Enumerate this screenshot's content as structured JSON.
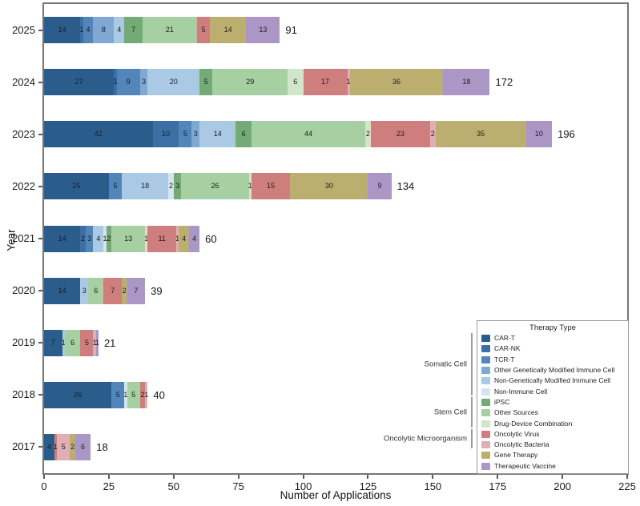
{
  "chart_data": {
    "type": "bar",
    "orientation": "horizontal",
    "stacked": true,
    "xlabel": "Number of Applications",
    "ylabel": "Year",
    "xlim": [
      0,
      225
    ],
    "x_ticks": [
      0,
      25,
      50,
      75,
      100,
      125,
      150,
      175,
      200,
      225
    ],
    "categories": [
      "2025",
      "2024",
      "2023",
      "2022",
      "2021",
      "2020",
      "2019",
      "2018",
      "2017"
    ],
    "series_order": [
      "CAR-T",
      "CAR-NK",
      "TCR-T",
      "Other Genetically Modified Immune Cell",
      "Non-Genetically Modified Immune Cell",
      "Non-Immune Cell",
      "iPSC",
      "Other Sources",
      "Drug-Device Combination",
      "Oncolytic Virus",
      "Oncolytic Bacteria",
      "Gene Therapy",
      "Therapeutic Vaccine"
    ],
    "colors": {
      "CAR-T": "#2a5d8c",
      "CAR-NK": "#3c6fa3",
      "TCR-T": "#5285ba",
      "Other Genetically Modified Immune Cell": "#7fa8d2",
      "Non-Genetically Modified Immune Cell": "#aac9e5",
      "Non-Immune Cell": "#d6e4f1",
      "iPSC": "#74aa76",
      "Other Sources": "#a6cfa2",
      "Drug-Device Combination": "#cfe6ca",
      "Oncolytic Virus": "#ce7e7c",
      "Oncolytic Bacteria": "#e2aeb6",
      "Gene Therapy": "#bcae6e",
      "Therapeutic Vaccine": "#ab97c6"
    },
    "bars": [
      {
        "year": "2025",
        "total": 91,
        "segments": [
          [
            "CAR-T",
            14
          ],
          [
            "CAR-NK",
            1
          ],
          [
            "TCR-T",
            4
          ],
          [
            "Other Genetically Modified Immune Cell",
            8
          ],
          [
            "Non-Genetically Modified Immune Cell",
            4
          ],
          [
            "iPSC",
            7
          ],
          [
            "Other Sources",
            21
          ],
          [
            "Oncolytic Virus",
            5
          ],
          [
            "Gene Therapy",
            14
          ],
          [
            "Therapeutic Vaccine",
            13
          ]
        ]
      },
      {
        "year": "2024",
        "total": 172,
        "segments": [
          [
            "CAR-T",
            27
          ],
          [
            "CAR-NK",
            1
          ],
          [
            "TCR-T",
            9
          ],
          [
            "Other Genetically Modified Immune Cell",
            3
          ],
          [
            "Non-Genetically Modified Immune Cell",
            20
          ],
          [
            "iPSC",
            5
          ],
          [
            "Other Sources",
            29
          ],
          [
            "Drug-Device Combination",
            6
          ],
          [
            "Oncolytic Virus",
            17
          ],
          [
            "Oncolytic Bacteria",
            1
          ],
          [
            "Gene Therapy",
            36
          ],
          [
            "Therapeutic Vaccine",
            18
          ]
        ]
      },
      {
        "year": "2023",
        "total": 196,
        "segments": [
          [
            "CAR-T",
            42
          ],
          [
            "CAR-NK",
            10
          ],
          [
            "TCR-T",
            5
          ],
          [
            "Other Genetically Modified Immune Cell",
            3
          ],
          [
            "Non-Genetically Modified Immune Cell",
            14
          ],
          [
            "iPSC",
            6
          ],
          [
            "Other Sources",
            44
          ],
          [
            "Drug-Device Combination",
            2
          ],
          [
            "Oncolytic Virus",
            23
          ],
          [
            "Oncolytic Bacteria",
            2
          ],
          [
            "Gene Therapy",
            35
          ],
          [
            "Therapeutic Vaccine",
            10
          ]
        ]
      },
      {
        "year": "2022",
        "total": 134,
        "segments": [
          [
            "CAR-T",
            25
          ],
          [
            "TCR-T",
            5
          ],
          [
            "Non-Genetically Modified Immune Cell",
            18
          ],
          [
            "Non-Immune Cell",
            2
          ],
          [
            "iPSC",
            3
          ],
          [
            "Other Sources",
            26
          ],
          [
            "Drug-Device Combination",
            1
          ],
          [
            "Oncolytic Virus",
            15
          ],
          [
            "Gene Therapy",
            30
          ],
          [
            "Therapeutic Vaccine",
            9
          ]
        ]
      },
      {
        "year": "2021",
        "total": 60,
        "segments": [
          [
            "CAR-T",
            14
          ],
          [
            "CAR-NK",
            2
          ],
          [
            "TCR-T",
            3
          ],
          [
            "Non-Genetically Modified Immune Cell",
            4
          ],
          [
            "Non-Immune Cell",
            1
          ],
          [
            "iPSC",
            2
          ],
          [
            "Other Sources",
            13
          ],
          [
            "Drug-Device Combination",
            1
          ],
          [
            "Oncolytic Virus",
            11
          ],
          [
            "Oncolytic Bacteria",
            1
          ],
          [
            "Gene Therapy",
            4
          ],
          [
            "Therapeutic Vaccine",
            4
          ]
        ]
      },
      {
        "year": "2020",
        "total": 39,
        "segments": [
          [
            "CAR-T",
            14
          ],
          [
            "Non-Genetically Modified Immune Cell",
            3
          ],
          [
            "Other Sources",
            6
          ],
          [
            "Oncolytic Virus",
            7
          ],
          [
            "Gene Therapy",
            2
          ],
          [
            "Therapeutic Vaccine",
            7
          ]
        ]
      },
      {
        "year": "2019",
        "total": 21,
        "segments": [
          [
            "CAR-T",
            7
          ],
          [
            "Non-Genetically Modified Immune Cell",
            1
          ],
          [
            "Other Sources",
            6
          ],
          [
            "Oncolytic Virus",
            5
          ],
          [
            "Oncolytic Bacteria",
            1
          ],
          [
            "Therapeutic Vaccine",
            1
          ]
        ]
      },
      {
        "year": "2018",
        "total": 40,
        "segments": [
          [
            "CAR-T",
            26
          ],
          [
            "TCR-T",
            5
          ],
          [
            "Non-Immune Cell",
            1
          ],
          [
            "Other Sources",
            5
          ],
          [
            "Oncolytic Virus",
            2
          ],
          [
            "Oncolytic Bacteria",
            1
          ]
        ]
      },
      {
        "year": "2017",
        "total": 18,
        "segments": [
          [
            "CAR-T",
            4
          ],
          [
            "Oncolytic Virus",
            1
          ],
          [
            "Oncolytic Bacteria",
            5
          ],
          [
            "Gene Therapy",
            2
          ],
          [
            "Therapeutic Vaccine",
            6
          ]
        ]
      }
    ]
  },
  "legend": {
    "title": "Therapy Type",
    "items": [
      {
        "label": "CAR-T",
        "color": "#2a5d8c"
      },
      {
        "label": "CAR-NK",
        "color": "#3c6fa3"
      },
      {
        "label": "TCR-T",
        "color": "#5285ba"
      },
      {
        "label": "Other Genetically Modified Immune Cell",
        "color": "#7fa8d2"
      },
      {
        "label": "Non-Genetically Modified Immune Cell",
        "color": "#aac9e5"
      },
      {
        "label": "Non-Immune Cell",
        "color": "#d6e4f1"
      },
      {
        "label": "iPSC",
        "color": "#74aa76"
      },
      {
        "label": "Other Sources",
        "color": "#a6cfa2"
      },
      {
        "label": "Drug-Device Combination",
        "color": "#cfe6ca"
      },
      {
        "label": "Oncolytic Virus",
        "color": "#ce7e7c"
      },
      {
        "label": "Oncolytic Bacteria",
        "color": "#e2aeb6"
      },
      {
        "label": "Gene Therapy",
        "color": "#bcae6e"
      },
      {
        "label": "Therapeutic Vaccine",
        "color": "#ab97c6"
      }
    ]
  },
  "group_annotations": [
    {
      "label": "Somatic Cell",
      "item_start": 0,
      "item_end": 5
    },
    {
      "label": "Stem Cell",
      "item_start": 6,
      "item_end": 8
    },
    {
      "label": "Oncolytic Microorganism",
      "item_start": 9,
      "item_end": 10
    }
  ]
}
